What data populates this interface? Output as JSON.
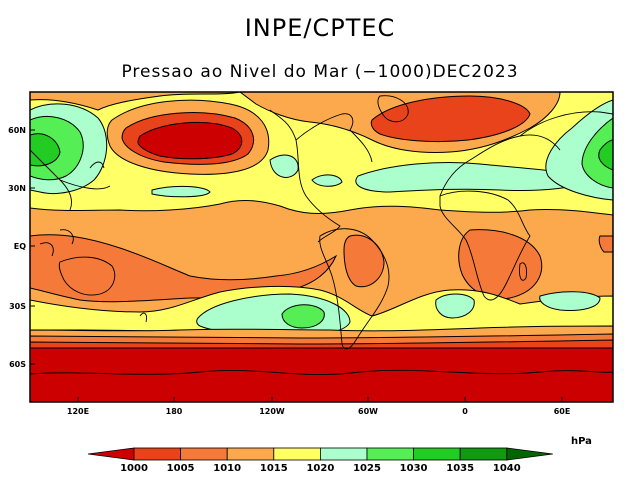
{
  "header": {
    "title": "INPE/CPTEC",
    "subtitle": "Pressao ao Nivel do Mar (−1000)DEC2023"
  },
  "axes": {
    "lat_labels": [
      "60N",
      "30N",
      "EQ",
      "30S",
      "60S"
    ],
    "lon_labels": [
      "120E",
      "180",
      "120W",
      "60W",
      "0",
      "60E"
    ]
  },
  "colorbar": {
    "unit": "hPa",
    "levels": [
      "1000",
      "1005",
      "1010",
      "1015",
      "1020",
      "1025",
      "1030",
      "1035",
      "1040"
    ],
    "colors": [
      "#cc0000",
      "#e8431a",
      "#f57a3a",
      "#fca94d",
      "#ffff66",
      "#aaffcc",
      "#55ee55",
      "#22cc22",
      "#119911",
      "#006600"
    ]
  }
}
